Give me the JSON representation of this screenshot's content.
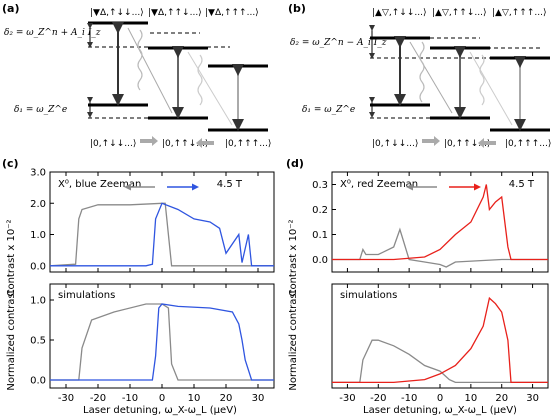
{
  "figure": {
    "panel_a": {
      "label": "(a)",
      "top_states": [
        "|▼Δ,↑↓↓...⟩",
        "|▼Δ,↑↑↓...⟩",
        "|▼Δ,↑↑↑...⟩"
      ],
      "bottom_states": [
        "|0,↑↓↓...⟩",
        "|0,↑↑↓...⟩",
        "|0,↑↑↑...⟩"
      ],
      "delta2": "δ₂ = ω_Z^n + A_i I_z",
      "delta1": "δ₁ = ω_Z^e"
    },
    "panel_b": {
      "label": "(b)",
      "top_states": [
        "|▲▽,↑↓↓...⟩",
        "|▲▽,↑↑↓...⟩",
        "|▲▽,↑↑↑...⟩"
      ],
      "bottom_states": [
        "|0,↑↓↓...⟩",
        "|0,↑↑↓...⟩",
        "|0,↑↑↑...⟩"
      ],
      "delta2": "δ₂ = ω_Z^n − A_i I_z",
      "delta1": "δ₁ = ω_Z^e"
    },
    "panel_c": {
      "label": "(c)",
      "top_title": "X⁰, blue Zeeman",
      "field": "4.5 T",
      "top_ylabel": "Contrast x 10⁻²",
      "bottom_title": "simulations",
      "bottom_ylabel": "Normalized contrast",
      "xlabel": "Laser detuning, ω_X-ω_L (μeV)"
    },
    "panel_d": {
      "label": "(d)",
      "top_title": "X⁰, red Zeeman",
      "field": "4.5 T",
      "top_ylabel": "Contrast x 10⁻²",
      "bottom_title": "simulations",
      "bottom_ylabel": "Normalized contrast",
      "xlabel": "Laser detuning, ω_X-ω_L (μeV)"
    },
    "colors": {
      "gray": "#8a8a8a",
      "blue": "#2f55e0",
      "red": "#e8211b"
    }
  },
  "chart_data": [
    {
      "type": "line",
      "panel": "(c) top",
      "title": "X⁰, blue Zeeman",
      "ylabel": "Contrast x 10⁻²",
      "xlim": [
        -35,
        35
      ],
      "ylim": [
        -0.2,
        3.0
      ],
      "xticks": [
        -30,
        -20,
        -10,
        0,
        10,
        20,
        30
      ],
      "yticks": [
        0.0,
        1.0,
        2.0,
        3.0
      ],
      "series": [
        {
          "color": "gray",
          "x": [
            -35,
            -27,
            -26,
            -25,
            -20,
            -10,
            0,
            1,
            2,
            3,
            10,
            20,
            30,
            35
          ],
          "y": [
            0,
            0.05,
            1.5,
            1.8,
            1.95,
            1.95,
            2.0,
            2.0,
            1.0,
            0,
            0,
            0,
            0,
            0
          ]
        },
        {
          "color": "blue",
          "x": [
            -35,
            -5,
            -3,
            -2,
            0,
            5,
            10,
            15,
            18,
            20,
            24,
            25,
            27,
            28,
            30,
            33,
            35
          ],
          "y": [
            0,
            0,
            0.05,
            1.5,
            2.0,
            1.8,
            1.5,
            1.4,
            1.2,
            0.4,
            1.0,
            0.1,
            1.0,
            0,
            0,
            0,
            0
          ]
        }
      ]
    },
    {
      "type": "line",
      "panel": "(c) bottom",
      "title": "simulations",
      "ylabel": "Normalized contrast",
      "xlabel": "Laser detuning, ω_X-ω_L (μeV)",
      "xlim": [
        -35,
        35
      ],
      "ylim": [
        -0.1,
        1.2
      ],
      "xticks": [
        -30,
        -20,
        -10,
        0,
        10,
        20,
        30
      ],
      "yticks": [
        0.0,
        0.5,
        1.0
      ],
      "series": [
        {
          "color": "gray",
          "x": [
            -35,
            -26,
            -25,
            -22,
            -15,
            -5,
            0,
            2,
            3,
            5,
            35
          ],
          "y": [
            0,
            0,
            0.4,
            0.75,
            0.85,
            0.95,
            0.95,
            0.9,
            0.2,
            0,
            0
          ]
        },
        {
          "color": "blue",
          "x": [
            -35,
            -3,
            -2,
            -1,
            0,
            5,
            15,
            22,
            24,
            25,
            26,
            28,
            35
          ],
          "y": [
            0,
            0,
            0.3,
            0.9,
            0.95,
            0.92,
            0.9,
            0.85,
            0.7,
            0.5,
            0.25,
            0,
            0
          ]
        }
      ]
    },
    {
      "type": "line",
      "panel": "(d) top",
      "title": "X⁰, red Zeeman",
      "ylabel": "Contrast x 10⁻²",
      "xlim": [
        -35,
        35
      ],
      "ylim": [
        -0.05,
        0.35
      ],
      "xticks": [
        -30,
        -20,
        -10,
        0,
        10,
        20,
        30
      ],
      "yticks": [
        0.0,
        0.1,
        0.2,
        0.3
      ],
      "series": [
        {
          "color": "gray",
          "x": [
            -35,
            -26,
            -25,
            -24,
            -20,
            -15,
            -13,
            -12,
            -10,
            -5,
            0,
            2,
            5,
            20,
            35
          ],
          "y": [
            0,
            0,
            0.04,
            0.02,
            0.02,
            0.05,
            0.12,
            0.08,
            0.0,
            -0.01,
            -0.02,
            -0.03,
            -0.01,
            0,
            0
          ]
        },
        {
          "color": "red",
          "x": [
            -35,
            -25,
            -15,
            -5,
            0,
            5,
            10,
            14,
            15,
            16,
            18,
            20,
            21,
            22,
            23,
            25,
            35
          ],
          "y": [
            0,
            0,
            0,
            0.01,
            0.04,
            0.1,
            0.15,
            0.25,
            0.3,
            0.2,
            0.23,
            0.25,
            0.15,
            0.05,
            0,
            0,
            0
          ]
        }
      ]
    },
    {
      "type": "line",
      "panel": "(d) bottom",
      "title": "simulations",
      "ylabel": "Normalized contrast",
      "xlabel": "Laser detuning, ω_X-ω_L (μeV)",
      "xlim": [
        -35,
        35
      ],
      "ylim": [
        -0.02,
        0.35
      ],
      "xticks": [
        -30,
        -20,
        -10,
        0,
        10,
        20,
        30
      ],
      "series": [
        {
          "color": "gray",
          "x": [
            -35,
            -26,
            -25,
            -22,
            -20,
            -15,
            -10,
            -5,
            0,
            3,
            5,
            10,
            35
          ],
          "y": [
            0,
            0,
            0.08,
            0.15,
            0.15,
            0.13,
            0.1,
            0.06,
            0.04,
            0.01,
            0,
            0,
            0
          ]
        },
        {
          "color": "red",
          "x": [
            -35,
            -25,
            -15,
            -10,
            -5,
            0,
            5,
            10,
            14,
            16,
            18,
            20,
            22,
            23,
            35
          ],
          "y": [
            0,
            0,
            0,
            0.005,
            0.01,
            0.03,
            0.06,
            0.12,
            0.2,
            0.3,
            0.28,
            0.25,
            0.15,
            0,
            0
          ]
        }
      ]
    }
  ]
}
